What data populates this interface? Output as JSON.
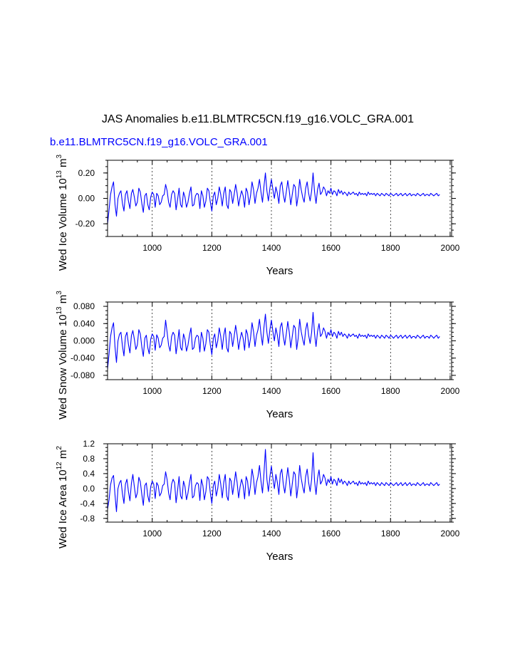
{
  "main_title": "JAS Anomalies b.e11.BLMTRC5CN.f19_g16.VOLC_GRA.001",
  "case_label": "b.e11.BLMTRC5CN.f19_g16.VOLC_GRA.001",
  "colors": {
    "series": "#0000ff",
    "case_label": "#0000ff",
    "axes": "#000000",
    "grid": "#000000"
  },
  "chart_data": [
    {
      "type": "line",
      "title": "",
      "ylabel": "Wed Ice Volume 10",
      "ylabel_exp1": "13",
      "ylabel_unit": " m",
      "ylabel_exp2": "3",
      "xlabel": "Years",
      "xlim": [
        850,
        2005
      ],
      "ylim": [
        -0.3,
        0.3
      ],
      "xticks": [
        1000,
        1200,
        1400,
        1600,
        1800,
        2000
      ],
      "yticks": [
        0.2,
        0.0,
        -0.2
      ],
      "ytick_labels": [
        "0.20",
        "0.00",
        "-0.20"
      ],
      "grid": "vertical dashed",
      "series": [
        {
          "name": "Wed Ice Volume",
          "x_start": 850,
          "x_step": 5,
          "values": [
            -0.2,
            -0.09,
            0.03,
            0.09,
            0.13,
            -0.05,
            -0.14,
            0.0,
            0.04,
            0.06,
            -0.04,
            -0.1,
            0.03,
            0.06,
            -0.02,
            -0.08,
            0.04,
            0.07,
            0.01,
            -0.06,
            -0.03,
            0.08,
            0.05,
            -0.04,
            -0.11,
            0.02,
            0.04,
            -0.05,
            -0.09,
            0.01,
            0.05,
            0.03,
            -0.07,
            0.04,
            0.02,
            -0.05,
            -0.03,
            0.02,
            0.03,
            0.11,
            0.06,
            -0.03,
            -0.07,
            0.03,
            0.06,
            0.04,
            -0.09,
            -0.01,
            0.08,
            -0.05,
            -0.07,
            0.05,
            0.01,
            -0.07,
            -0.03,
            0.04,
            0.09,
            -0.06,
            -0.05,
            0.02,
            0.04,
            0.03,
            -0.08,
            0.06,
            0.02,
            -0.07,
            -0.02,
            0.08,
            0.06,
            -0.03,
            -0.1,
            0.02,
            0.05,
            -0.05,
            0.0,
            0.09,
            0.03,
            -0.06,
            0.04,
            0.09,
            -0.05,
            -0.08,
            0.07,
            0.05,
            -0.04,
            0.03,
            0.11,
            0.04,
            -0.06,
            0.01,
            0.06,
            0.02,
            -0.07,
            0.08,
            0.05,
            -0.05,
            0.02,
            0.13,
            0.07,
            -0.04,
            0.04,
            0.08,
            0.15,
            0.05,
            -0.03,
            0.09,
            0.2,
            0.06,
            -0.02,
            0.08,
            0.15,
            0.07,
            0.0,
            0.09,
            0.04,
            -0.04,
            0.1,
            0.13,
            0.03,
            -0.03,
            0.05,
            0.14,
            0.06,
            -0.05,
            0.03,
            0.11,
            0.09,
            -0.06,
            0.02,
            0.15,
            0.07,
            0.01,
            -0.03,
            0.08,
            0.13,
            0.04,
            -0.02,
            0.06,
            0.2,
            0.05,
            -0.04,
            0.07,
            0.12,
            0.03,
            0.05,
            0.09,
            0.07,
            0.02,
            0.06,
            0.04,
            0.08,
            0.03,
            0.06,
            0.05,
            0.02,
            0.07,
            0.04,
            0.06,
            0.03,
            0.05,
            0.04,
            0.02,
            0.05,
            0.03,
            0.04,
            0.05,
            0.03,
            0.04,
            0.02,
            0.05,
            0.03,
            0.04,
            0.03,
            0.04,
            0.02,
            0.05,
            0.03,
            0.04,
            0.03,
            0.04,
            0.02,
            0.04,
            0.03,
            0.02,
            0.04,
            0.03,
            0.02,
            0.04,
            0.03,
            0.02,
            0.04,
            0.03,
            0.02,
            0.03,
            0.04,
            0.02,
            0.03,
            0.04,
            0.02,
            0.03,
            0.04,
            0.02,
            0.03,
            0.04,
            0.02,
            0.03,
            0.03,
            0.02,
            0.04,
            0.03,
            0.02,
            0.03,
            0.04,
            0.02,
            0.03,
            0.03,
            0.02,
            0.04,
            0.03,
            0.02,
            0.03,
            0.04,
            0.02,
            0.03
          ]
        }
      ]
    },
    {
      "type": "line",
      "title": "",
      "ylabel": "Wed Snow Volume 10",
      "ylabel_exp1": "13",
      "ylabel_unit": " m",
      "ylabel_exp2": "3",
      "xlabel": "Years",
      "xlim": [
        850,
        2005
      ],
      "ylim": [
        -0.09,
        0.09
      ],
      "xticks": [
        1000,
        1200,
        1400,
        1600,
        1800,
        2000
      ],
      "yticks": [
        0.08,
        0.04,
        0.0,
        -0.04,
        -0.08
      ],
      "ytick_labels": [
        "0.080",
        "0.040",
        "0.000",
        "-0.040",
        "-0.080"
      ],
      "grid": "vertical dashed",
      "series": [
        {
          "name": "Wed Snow Volume",
          "x_start": 850,
          "x_step": 5,
          "values": [
            -0.065,
            -0.03,
            0.01,
            0.03,
            0.042,
            -0.015,
            -0.05,
            0.0,
            0.015,
            0.02,
            -0.012,
            -0.035,
            0.01,
            0.02,
            -0.008,
            -0.028,
            0.012,
            0.024,
            0.004,
            -0.02,
            -0.01,
            0.026,
            0.016,
            -0.014,
            -0.036,
            0.006,
            0.013,
            -0.016,
            -0.03,
            0.004,
            0.016,
            0.01,
            -0.022,
            0.014,
            0.006,
            -0.016,
            -0.01,
            0.006,
            0.01,
            0.048,
            0.02,
            -0.01,
            -0.024,
            0.01,
            0.02,
            0.013,
            -0.03,
            -0.004,
            0.026,
            -0.016,
            -0.022,
            0.016,
            0.004,
            -0.024,
            -0.01,
            0.013,
            0.03,
            -0.02,
            -0.016,
            0.006,
            0.013,
            0.01,
            -0.026,
            0.02,
            0.006,
            -0.024,
            -0.006,
            0.026,
            0.02,
            -0.01,
            -0.032,
            0.006,
            0.016,
            -0.016,
            0.0,
            0.03,
            0.01,
            -0.02,
            0.013,
            0.03,
            -0.016,
            -0.026,
            0.022,
            0.016,
            -0.013,
            0.01,
            0.036,
            0.013,
            -0.02,
            0.004,
            0.02,
            0.006,
            -0.022,
            0.026,
            0.016,
            -0.016,
            0.006,
            0.042,
            0.022,
            -0.013,
            0.013,
            0.026,
            0.05,
            0.016,
            -0.01,
            0.03,
            0.062,
            0.02,
            -0.006,
            0.026,
            0.048,
            0.022,
            0.0,
            0.03,
            0.013,
            -0.013,
            0.032,
            0.042,
            0.01,
            -0.01,
            0.016,
            0.045,
            0.02,
            -0.016,
            0.01,
            0.036,
            0.03,
            -0.02,
            0.006,
            0.05,
            0.022,
            0.004,
            -0.01,
            0.026,
            0.042,
            0.013,
            -0.006,
            0.02,
            0.066,
            0.016,
            -0.013,
            0.022,
            0.04,
            0.01,
            0.016,
            0.03,
            0.022,
            0.006,
            0.02,
            0.013,
            0.026,
            0.01,
            0.02,
            0.016,
            0.006,
            0.022,
            0.013,
            0.02,
            0.01,
            0.016,
            0.013,
            0.006,
            0.016,
            0.01,
            0.013,
            0.016,
            0.01,
            0.013,
            0.006,
            0.016,
            0.01,
            0.013,
            0.01,
            0.013,
            0.006,
            0.016,
            0.01,
            0.013,
            0.01,
            0.013,
            0.006,
            0.013,
            0.01,
            0.006,
            0.013,
            0.01,
            0.006,
            0.013,
            0.01,
            0.006,
            0.013,
            0.01,
            0.006,
            0.01,
            0.013,
            0.006,
            0.01,
            0.013,
            0.006,
            0.01,
            0.013,
            0.006,
            0.01,
            0.013,
            0.006,
            0.01,
            0.01,
            0.006,
            0.013,
            0.01,
            0.006,
            0.01,
            0.013,
            0.006,
            0.01,
            0.01,
            0.006,
            0.013,
            0.01,
            0.006,
            0.01,
            0.013,
            0.006,
            0.01
          ]
        }
      ]
    },
    {
      "type": "line",
      "title": "",
      "ylabel": "Wed Ice Area 10",
      "ylabel_exp1": "12",
      "ylabel_unit": " m",
      "ylabel_exp2": "2",
      "xlabel": "Years",
      "xlim": [
        850,
        2005
      ],
      "ylim": [
        -0.9,
        1.2
      ],
      "xticks": [
        1000,
        1200,
        1400,
        1600,
        1800,
        2000
      ],
      "yticks": [
        1.2,
        0.8,
        0.4,
        0.0,
        -0.4,
        -0.8
      ],
      "ytick_labels": [
        "1.2",
        "0.8",
        "0.4",
        "0.0",
        "-0.4",
        "-0.8"
      ],
      "grid": "vertical dashed",
      "series": [
        {
          "name": "Wed Ice Area",
          "x_start": 850,
          "x_step": 5,
          "values": [
            -0.55,
            -0.3,
            0.1,
            0.28,
            0.35,
            -0.18,
            -0.62,
            0.0,
            0.15,
            0.22,
            -0.14,
            -0.4,
            0.12,
            0.25,
            -0.08,
            -0.33,
            0.14,
            0.38,
            0.05,
            -0.25,
            -0.12,
            0.3,
            0.18,
            -0.16,
            -0.45,
            0.08,
            0.15,
            -0.2,
            -0.36,
            0.05,
            0.2,
            0.12,
            -0.27,
            0.16,
            0.08,
            -0.2,
            -0.12,
            0.08,
            0.12,
            0.45,
            0.24,
            -0.12,
            -0.3,
            0.12,
            0.25,
            0.16,
            -0.38,
            -0.05,
            0.32,
            -0.2,
            -0.28,
            0.2,
            0.05,
            -0.3,
            -0.12,
            0.16,
            0.38,
            -0.25,
            -0.2,
            0.08,
            0.16,
            0.12,
            -0.32,
            0.25,
            0.08,
            -0.3,
            -0.08,
            0.32,
            0.25,
            -0.12,
            -0.4,
            0.08,
            0.2,
            -0.2,
            0.0,
            0.38,
            0.12,
            -0.25,
            0.16,
            0.38,
            -0.2,
            -0.32,
            0.28,
            0.2,
            -0.16,
            0.12,
            0.45,
            0.16,
            -0.25,
            0.05,
            0.25,
            0.08,
            -0.28,
            0.32,
            0.2,
            -0.2,
            0.08,
            0.52,
            0.28,
            -0.16,
            0.16,
            0.32,
            0.62,
            0.2,
            -0.12,
            0.38,
            1.05,
            0.25,
            -0.08,
            0.32,
            0.6,
            0.28,
            0.0,
            0.38,
            0.16,
            -0.16,
            0.4,
            0.52,
            0.12,
            -0.12,
            0.2,
            0.56,
            0.25,
            -0.2,
            0.12,
            0.45,
            0.38,
            -0.25,
            0.08,
            0.62,
            0.28,
            0.05,
            -0.12,
            0.32,
            0.52,
            0.16,
            -0.08,
            0.25,
            0.96,
            0.2,
            -0.16,
            0.28,
            0.5,
            0.12,
            0.2,
            0.38,
            0.28,
            0.08,
            0.25,
            0.16,
            0.32,
            0.12,
            0.25,
            0.2,
            0.08,
            0.28,
            0.16,
            0.25,
            0.12,
            0.2,
            0.16,
            0.08,
            0.2,
            0.12,
            0.16,
            0.2,
            0.12,
            0.16,
            0.08,
            0.2,
            0.12,
            0.16,
            0.12,
            0.16,
            0.08,
            0.2,
            0.12,
            0.16,
            0.12,
            0.16,
            0.08,
            0.16,
            0.12,
            0.08,
            0.16,
            0.12,
            0.08,
            0.16,
            0.12,
            0.08,
            0.16,
            0.12,
            0.08,
            0.12,
            0.16,
            0.08,
            0.12,
            0.16,
            0.08,
            0.12,
            0.16,
            0.08,
            0.12,
            0.16,
            0.08,
            0.12,
            0.12,
            0.08,
            0.16,
            0.12,
            0.08,
            0.12,
            0.16,
            0.08,
            0.12,
            0.12,
            0.08,
            0.16,
            0.12,
            0.08,
            0.12,
            0.16,
            0.08,
            0.12
          ]
        }
      ]
    }
  ]
}
